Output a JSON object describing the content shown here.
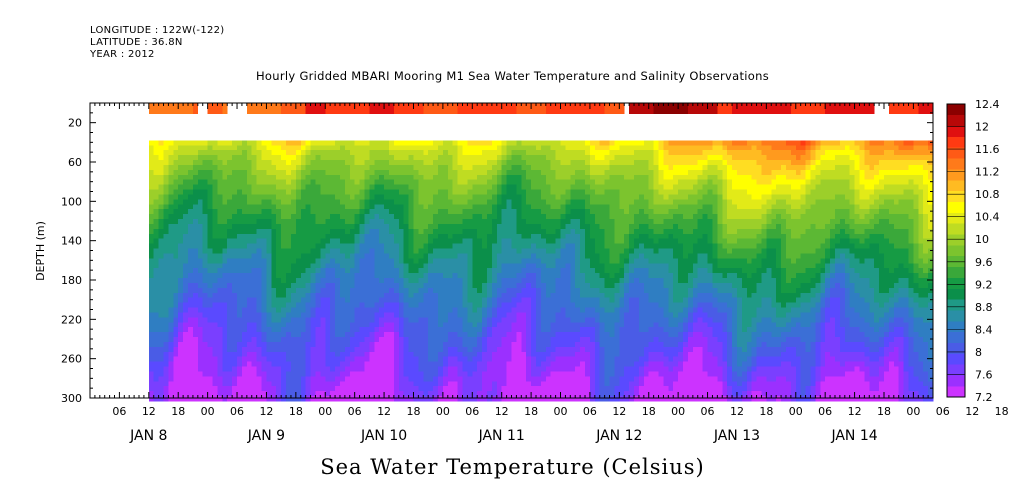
{
  "header": {
    "longitude": "LONGITUDE : 122W(-122)",
    "latitude": "LATITUDE : 36.8N",
    "year": "YEAR : 2012"
  },
  "chart_data": {
    "type": "heatmap",
    "title": "Hourly Gridded MBARI Mooring M1 Sea Water Temperature and Salinity Observations",
    "caption": "Sea Water Temperature (Celsius)",
    "ylabel": "DEPTH (m)",
    "y_axis": {
      "range": [
        0,
        300
      ],
      "inverted": true,
      "tick_labels": [
        "20",
        "60",
        "100",
        "140",
        "180",
        "220",
        "260",
        "300"
      ]
    },
    "x_axis": {
      "hour_labels": [
        "06",
        "12",
        "18",
        "00",
        "06",
        "12",
        "18",
        "00",
        "06",
        "12",
        "18",
        "00",
        "06",
        "12",
        "18",
        "00",
        "06",
        "12",
        "18",
        "00",
        "06",
        "12",
        "18",
        "00",
        "06",
        "12",
        "18",
        "00",
        "06",
        "12",
        "18",
        "00"
      ],
      "day_labels": [
        "JAN  8",
        "JAN  9",
        "JAN 10",
        "JAN 11",
        "JAN 12",
        "JAN 13",
        "JAN 14"
      ],
      "range_hours_from_jan8_00": [
        0,
        172
      ]
    },
    "colorbar": {
      "labels": [
        "12.4",
        "12",
        "11.6",
        "11.2",
        "10.8",
        "10.4",
        "10",
        "9.6",
        "9.2",
        "8.8",
        "8.4",
        "8",
        "7.6",
        "7.2"
      ],
      "min": 7.2,
      "max": 12.4,
      "step": 0.2,
      "colors": [
        "#cc33ff",
        "#9b30ff",
        "#7a3fff",
        "#5a4aff",
        "#4a5ce6",
        "#3b6fd6",
        "#2f7ec2",
        "#2a8fa6",
        "#1f9a86",
        "#0b8f4a",
        "#169b44",
        "#3aa83a",
        "#5cb834",
        "#7cc42e",
        "#9ccf2a",
        "#bfdc22",
        "#e2ea18",
        "#ffff00",
        "#ffdd22",
        "#ffbb22",
        "#ff9a1e",
        "#ff7a1a",
        "#ff5a16",
        "#ff3a12",
        "#e01010",
        "#b80808",
        "#8b0000"
      ]
    },
    "data_window_hours": [
      12,
      172
    ],
    "surface_gaps_hours": [
      [
        22,
        24
      ],
      [
        28,
        32
      ],
      [
        109,
        110
      ],
      [
        160,
        163
      ]
    ],
    "surface_row_values": [
      11.5,
      12.1,
      12.0,
      11.9,
      12.3
    ],
    "missing_depth_range_m": [
      15,
      38
    ]
  }
}
